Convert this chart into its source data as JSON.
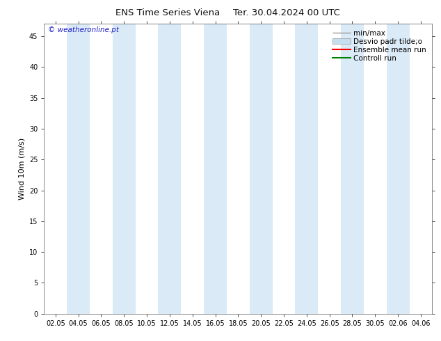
{
  "title_left": "ENS Time Series Viena",
  "title_right": "Ter. 30.04.2024 00 UTC",
  "ylabel": "Wind 10m (m/s)",
  "watermark": "© weatheronline.pt",
  "ylim": [
    0,
    47
  ],
  "yticks": [
    0,
    5,
    10,
    15,
    20,
    25,
    30,
    35,
    40,
    45
  ],
  "xtick_labels": [
    "02.05",
    "04.05",
    "06.05",
    "08.05",
    "10.05",
    "12.05",
    "14.05",
    "16.05",
    "18.05",
    "20.05",
    "22.05",
    "24.05",
    "26.05",
    "28.05",
    "30.05",
    "02.06",
    "04.06"
  ],
  "background_color": "#ffffff",
  "plot_bg_color": "#ffffff",
  "band_color": "#daeaf7",
  "title_fontsize": 9.5,
  "tick_fontsize": 7,
  "ylabel_fontsize": 8,
  "watermark_color": "#2222cc",
  "watermark_fontsize": 7.5,
  "figsize": [
    6.34,
    4.9
  ],
  "dpi": 100,
  "legend_fontsize": 7.5
}
